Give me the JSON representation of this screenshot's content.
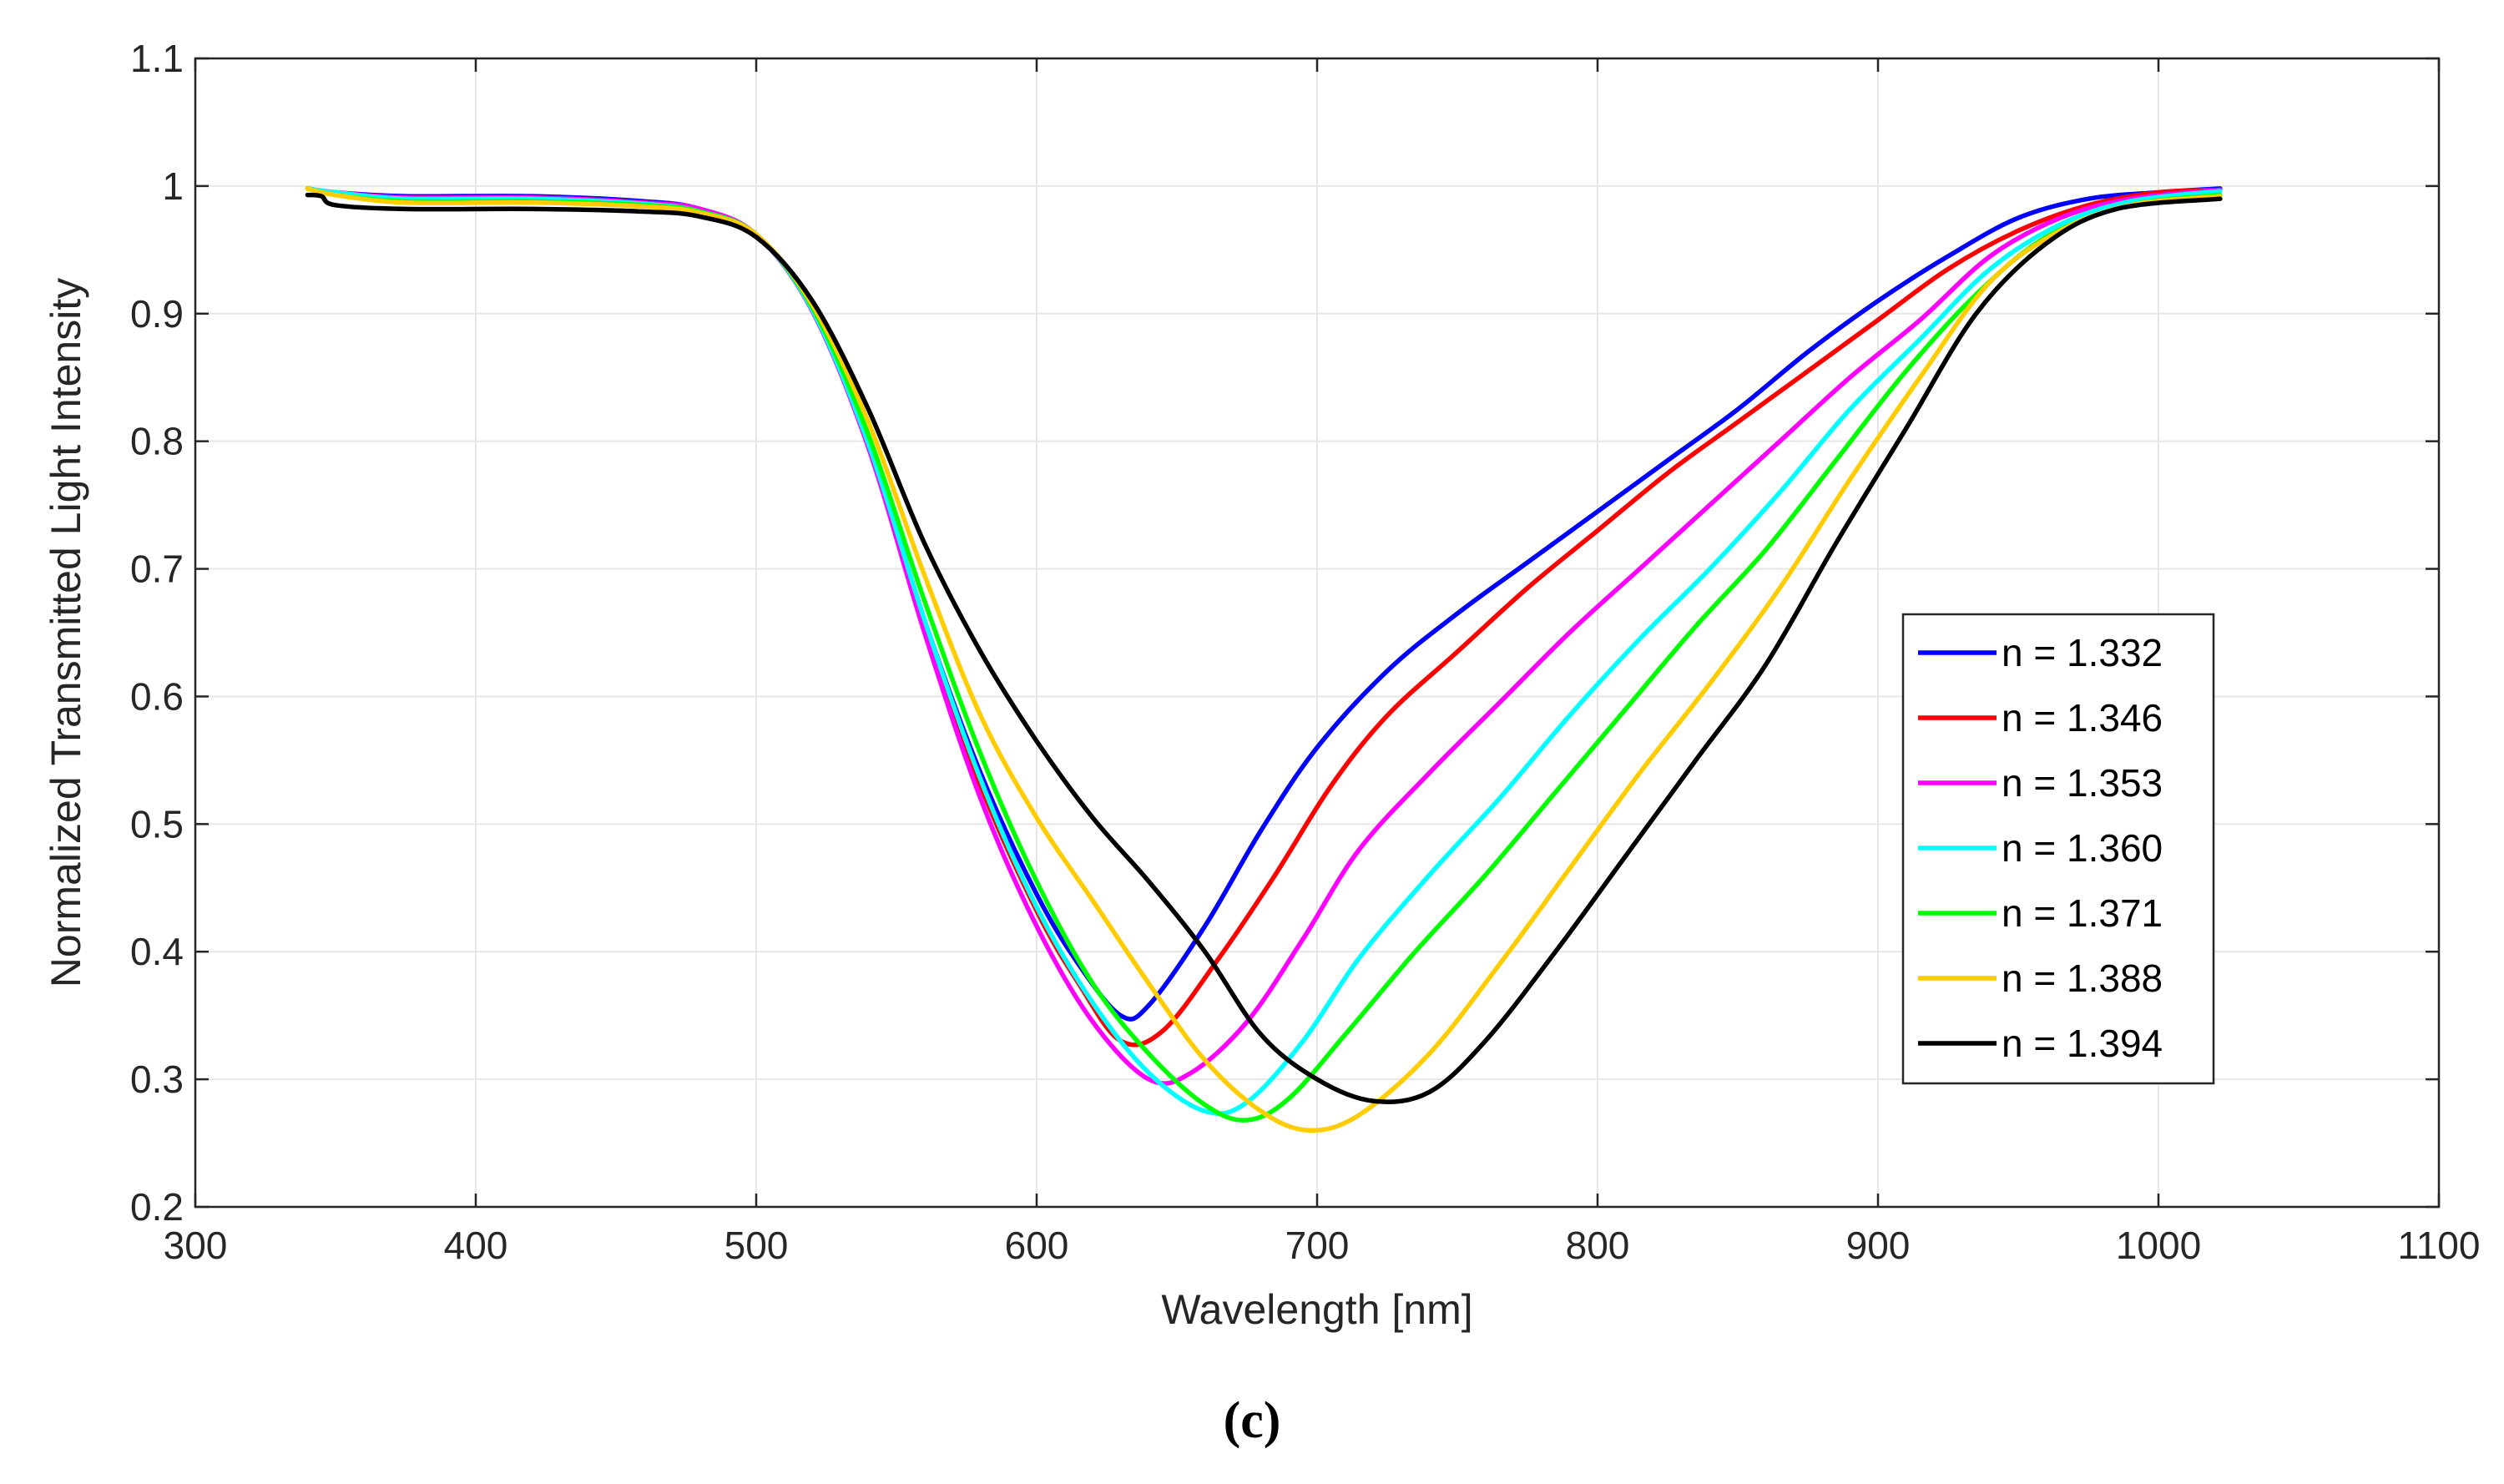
{
  "chart_data": {
    "type": "line",
    "title": "",
    "xlabel": "Wavelength [nm]",
    "ylabel": "Normalized Transmitted Light Intensity",
    "xlim": [
      300,
      1100
    ],
    "ylim": [
      0.2,
      1.1
    ],
    "xticks": [
      "300",
      "400",
      "500",
      "600",
      "700",
      "800",
      "900",
      "1000",
      "1100"
    ],
    "yticks": [
      "0.2",
      "0.3",
      "0.4",
      "0.5",
      "0.6",
      "0.7",
      "0.8",
      "0.9",
      "1",
      "1.1"
    ],
    "grid": true,
    "legend_position": "right",
    "caption": "(c)",
    "series": [
      {
        "name": "n = 1.332",
        "color": "#0000ff",
        "points": [
          [
            340,
            0.998
          ],
          [
            350,
            0.995
          ],
          [
            375,
            0.992
          ],
          [
            420,
            0.992
          ],
          [
            460,
            0.988
          ],
          [
            480,
            0.982
          ],
          [
            500,
            0.962
          ],
          [
            520,
            0.905
          ],
          [
            540,
            0.8
          ],
          [
            560,
            0.66
          ],
          [
            580,
            0.54
          ],
          [
            600,
            0.445
          ],
          [
            615,
            0.39
          ],
          [
            630,
            0.35
          ],
          [
            640,
            0.358
          ],
          [
            660,
            0.42
          ],
          [
            680,
            0.495
          ],
          [
            700,
            0.56
          ],
          [
            725,
            0.62
          ],
          [
            750,
            0.665
          ],
          [
            775,
            0.705
          ],
          [
            800,
            0.745
          ],
          [
            825,
            0.785
          ],
          [
            850,
            0.825
          ],
          [
            875,
            0.87
          ],
          [
            900,
            0.91
          ],
          [
            925,
            0.945
          ],
          [
            950,
            0.975
          ],
          [
            975,
            0.99
          ],
          [
            1000,
            0.995
          ],
          [
            1022,
            0.998
          ]
        ]
      },
      {
        "name": "n = 1.346",
        "color": "#ff0000",
        "points": [
          [
            340,
            0.998
          ],
          [
            350,
            0.995
          ],
          [
            375,
            0.991
          ],
          [
            420,
            0.991
          ],
          [
            460,
            0.987
          ],
          [
            480,
            0.981
          ],
          [
            500,
            0.962
          ],
          [
            520,
            0.905
          ],
          [
            540,
            0.798
          ],
          [
            560,
            0.655
          ],
          [
            580,
            0.53
          ],
          [
            600,
            0.432
          ],
          [
            615,
            0.375
          ],
          [
            630,
            0.33
          ],
          [
            645,
            0.338
          ],
          [
            665,
            0.395
          ],
          [
            685,
            0.46
          ],
          [
            705,
            0.53
          ],
          [
            725,
            0.585
          ],
          [
            750,
            0.635
          ],
          [
            775,
            0.685
          ],
          [
            800,
            0.73
          ],
          [
            825,
            0.775
          ],
          [
            850,
            0.815
          ],
          [
            875,
            0.855
          ],
          [
            900,
            0.895
          ],
          [
            925,
            0.935
          ],
          [
            950,
            0.965
          ],
          [
            975,
            0.985
          ],
          [
            1000,
            0.995
          ],
          [
            1022,
            0.997
          ]
        ]
      },
      {
        "name": "n = 1.353",
        "color": "#ff00ff",
        "points": [
          [
            340,
            0.998
          ],
          [
            350,
            0.995
          ],
          [
            375,
            0.991
          ],
          [
            420,
            0.991
          ],
          [
            460,
            0.987
          ],
          [
            480,
            0.982
          ],
          [
            500,
            0.962
          ],
          [
            520,
            0.902
          ],
          [
            540,
            0.795
          ],
          [
            560,
            0.65
          ],
          [
            580,
            0.52
          ],
          [
            600,
            0.42
          ],
          [
            620,
            0.345
          ],
          [
            640,
            0.3
          ],
          [
            655,
            0.305
          ],
          [
            675,
            0.345
          ],
          [
            695,
            0.41
          ],
          [
            715,
            0.48
          ],
          [
            740,
            0.54
          ],
          [
            765,
            0.595
          ],
          [
            790,
            0.65
          ],
          [
            815,
            0.7
          ],
          [
            840,
            0.75
          ],
          [
            865,
            0.8
          ],
          [
            890,
            0.85
          ],
          [
            915,
            0.895
          ],
          [
            940,
            0.945
          ],
          [
            965,
            0.975
          ],
          [
            990,
            0.99
          ],
          [
            1022,
            0.997
          ]
        ]
      },
      {
        "name": "n = 1.360",
        "color": "#00ffff",
        "points": [
          [
            340,
            0.998
          ],
          [
            350,
            0.995
          ],
          [
            375,
            0.99
          ],
          [
            420,
            0.99
          ],
          [
            460,
            0.986
          ],
          [
            480,
            0.98
          ],
          [
            500,
            0.962
          ],
          [
            520,
            0.903
          ],
          [
            540,
            0.798
          ],
          [
            560,
            0.66
          ],
          [
            580,
            0.535
          ],
          [
            600,
            0.435
          ],
          [
            620,
            0.36
          ],
          [
            640,
            0.305
          ],
          [
            660,
            0.275
          ],
          [
            675,
            0.282
          ],
          [
            695,
            0.33
          ],
          [
            715,
            0.395
          ],
          [
            740,
            0.46
          ],
          [
            765,
            0.52
          ],
          [
            790,
            0.585
          ],
          [
            815,
            0.645
          ],
          [
            840,
            0.7
          ],
          [
            865,
            0.76
          ],
          [
            890,
            0.825
          ],
          [
            915,
            0.88
          ],
          [
            940,
            0.935
          ],
          [
            965,
            0.97
          ],
          [
            990,
            0.988
          ],
          [
            1022,
            0.996
          ]
        ]
      },
      {
        "name": "n = 1.371",
        "color": "#00ff00",
        "points": [
          [
            340,
            0.998
          ],
          [
            350,
            0.993
          ],
          [
            375,
            0.988
          ],
          [
            420,
            0.988
          ],
          [
            460,
            0.985
          ],
          [
            480,
            0.98
          ],
          [
            500,
            0.962
          ],
          [
            520,
            0.905
          ],
          [
            540,
            0.805
          ],
          [
            560,
            0.675
          ],
          [
            580,
            0.555
          ],
          [
            600,
            0.455
          ],
          [
            620,
            0.375
          ],
          [
            640,
            0.32
          ],
          [
            660,
            0.28
          ],
          [
            675,
            0.268
          ],
          [
            690,
            0.285
          ],
          [
            710,
            0.335
          ],
          [
            735,
            0.4
          ],
          [
            760,
            0.46
          ],
          [
            785,
            0.525
          ],
          [
            810,
            0.59
          ],
          [
            835,
            0.655
          ],
          [
            860,
            0.715
          ],
          [
            885,
            0.785
          ],
          [
            910,
            0.855
          ],
          [
            935,
            0.915
          ],
          [
            960,
            0.96
          ],
          [
            990,
            0.985
          ],
          [
            1022,
            0.993
          ]
        ]
      },
      {
        "name": "n = 1.388",
        "color": "#ffcc00",
        "points": [
          [
            340,
            0.998
          ],
          [
            350,
            0.993
          ],
          [
            375,
            0.987
          ],
          [
            420,
            0.987
          ],
          [
            460,
            0.984
          ],
          [
            480,
            0.979
          ],
          [
            500,
            0.962
          ],
          [
            520,
            0.907
          ],
          [
            540,
            0.815
          ],
          [
            560,
            0.695
          ],
          [
            580,
            0.585
          ],
          [
            600,
            0.505
          ],
          [
            620,
            0.44
          ],
          [
            640,
            0.375
          ],
          [
            660,
            0.315
          ],
          [
            680,
            0.275
          ],
          [
            697,
            0.26
          ],
          [
            715,
            0.272
          ],
          [
            740,
            0.32
          ],
          [
            765,
            0.39
          ],
          [
            790,
            0.465
          ],
          [
            815,
            0.54
          ],
          [
            840,
            0.61
          ],
          [
            865,
            0.685
          ],
          [
            890,
            0.77
          ],
          [
            915,
            0.85
          ],
          [
            940,
            0.925
          ],
          [
            965,
            0.965
          ],
          [
            990,
            0.985
          ],
          [
            1022,
            0.992
          ]
        ]
      },
      {
        "name": "n = 1.394",
        "color": "#000000",
        "points": [
          [
            340,
            0.993
          ],
          [
            345,
            0.992
          ],
          [
            350,
            0.985
          ],
          [
            375,
            0.982
          ],
          [
            420,
            0.982
          ],
          [
            460,
            0.98
          ],
          [
            480,
            0.976
          ],
          [
            500,
            0.96
          ],
          [
            520,
            0.91
          ],
          [
            540,
            0.825
          ],
          [
            560,
            0.72
          ],
          [
            580,
            0.635
          ],
          [
            600,
            0.565
          ],
          [
            620,
            0.505
          ],
          [
            640,
            0.455
          ],
          [
            660,
            0.4
          ],
          [
            680,
            0.335
          ],
          [
            700,
            0.3
          ],
          [
            720,
            0.283
          ],
          [
            740,
            0.29
          ],
          [
            760,
            0.33
          ],
          [
            785,
            0.4
          ],
          [
            810,
            0.475
          ],
          [
            835,
            0.55
          ],
          [
            860,
            0.625
          ],
          [
            885,
            0.72
          ],
          [
            910,
            0.81
          ],
          [
            935,
            0.9
          ],
          [
            960,
            0.955
          ],
          [
            985,
            0.982
          ],
          [
            1022,
            0.99
          ]
        ]
      }
    ]
  }
}
